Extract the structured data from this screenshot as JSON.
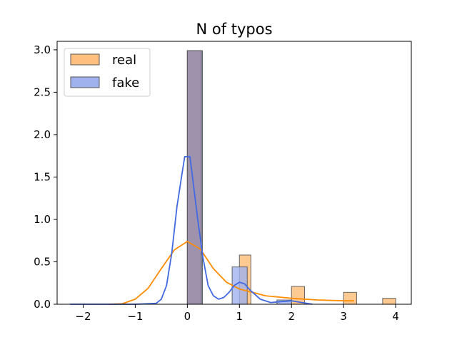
{
  "chart_data": {
    "type": "bar",
    "title": "N of typos",
    "xlabel": "",
    "ylabel": "",
    "xlim": [
      -2.5,
      4.3
    ],
    "ylim": [
      0,
      3.1
    ],
    "xticks": [
      -2,
      -1,
      0,
      1,
      2,
      3,
      4
    ],
    "yticks": [
      0.0,
      0.5,
      1.0,
      1.5,
      2.0,
      2.5,
      3.0
    ],
    "xtick_labels": [
      "−2",
      "−1",
      "0",
      "1",
      "2",
      "3",
      "4"
    ],
    "ytick_labels": [
      "0.0",
      "0.5",
      "1.0",
      "1.5",
      "2.0",
      "2.5",
      "3.0"
    ],
    "legend": {
      "position": "top-left"
    },
    "series": [
      {
        "name": "real",
        "kind": "histogram",
        "color": "#ffbf7f",
        "bins": [
          {
            "x0": 0.0,
            "x1": 0.27,
            "value": 2.99
          },
          {
            "x0": 1.0,
            "x1": 1.22,
            "value": 0.58
          },
          {
            "x0": 2.0,
            "x1": 2.25,
            "value": 0.21
          },
          {
            "x0": 3.0,
            "x1": 3.25,
            "value": 0.14
          },
          {
            "x0": 3.75,
            "x1": 4.0,
            "value": 0.07
          }
        ]
      },
      {
        "name": "fake",
        "kind": "histogram",
        "color": "#9fb2ee",
        "bins": [
          {
            "x0": 0.0,
            "x1": 0.29,
            "value": 2.99
          },
          {
            "x0": 0.86,
            "x1": 1.15,
            "value": 0.44
          },
          {
            "x0": 1.72,
            "x1": 2.0,
            "value": 0.05
          }
        ]
      }
    ],
    "kde": [
      {
        "series": "real",
        "color": "#ff8c00",
        "x": [
          -1.5,
          -1.25,
          -1.0,
          -0.75,
          -0.5,
          -0.25,
          0.0,
          0.25,
          0.5,
          0.75,
          1.0,
          1.25,
          1.5,
          2.0,
          2.5,
          3.0,
          3.2
        ],
        "y": [
          0.0,
          0.005,
          0.06,
          0.19,
          0.42,
          0.64,
          0.74,
          0.65,
          0.42,
          0.26,
          0.18,
          0.14,
          0.1,
          0.07,
          0.05,
          0.04,
          0.04
        ]
      },
      {
        "series": "fake",
        "color": "#4169e1",
        "x": [
          -2.25,
          -1.0,
          -0.6,
          -0.5,
          -0.4,
          -0.3,
          -0.2,
          -0.1,
          -0.05,
          0.05,
          0.1,
          0.2,
          0.3,
          0.4,
          0.5,
          0.6,
          0.7,
          0.8,
          0.9,
          1.0,
          1.1,
          1.2,
          1.4,
          1.6,
          1.8,
          2.0,
          2.2,
          2.4
        ],
        "y": [
          0.0,
          0.0,
          0.01,
          0.06,
          0.22,
          0.6,
          1.15,
          1.55,
          1.74,
          1.74,
          1.5,
          1.0,
          0.55,
          0.22,
          0.1,
          0.06,
          0.08,
          0.14,
          0.22,
          0.26,
          0.24,
          0.17,
          0.06,
          0.02,
          0.03,
          0.04,
          0.02,
          0.0
        ]
      }
    ]
  }
}
